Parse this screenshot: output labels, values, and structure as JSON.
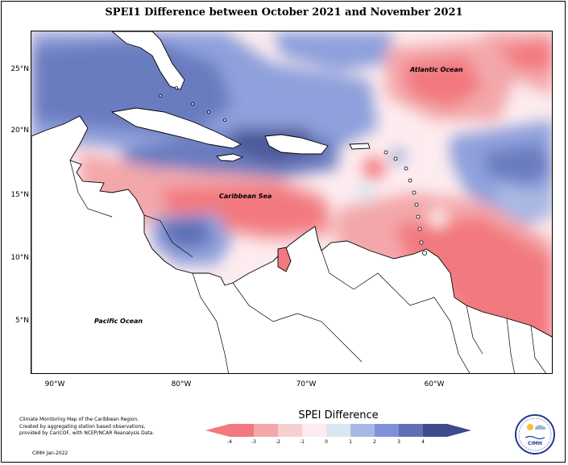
{
  "title": "SPEI1 Difference between October 2021 and November 2021",
  "map": {
    "lat_labels": [
      "25°N",
      "20°N",
      "15°N",
      "10°N",
      "5°N"
    ],
    "lon_labels": [
      "90°W",
      "80°W",
      "70°W",
      "60°W"
    ],
    "place_labels": {
      "atlantic": "Atlantic Ocean",
      "caribbean": "Caribbean Sea",
      "pacific": "Pacific Ocean"
    },
    "extent": {
      "lon_min": -92,
      "lon_max": -51,
      "lat_min": 1.5,
      "lat_max": 28
    }
  },
  "legend": {
    "title": "SPEI Difference",
    "ticks": [
      "-4",
      "-3",
      "-2",
      "-1",
      "0",
      "1",
      "2",
      "3",
      "4"
    ],
    "colors": [
      "#f2797f",
      "#f3a7aa",
      "#f6cfd1",
      "#fdecef",
      "#d8e8ee",
      "#aab9e3",
      "#7f92d9",
      "#5f6fb5",
      "#3e4a8c"
    ]
  },
  "footnote": {
    "lines": [
      "Climate Monitoring Map of the Caribbean Region.",
      "Created by aggregating station based observations,",
      "provided by CariCOF, with NCEP/NCAR Reanalysis Data."
    ],
    "credit": "CIMH Jan-2022"
  },
  "logo": {
    "text": "CIMH"
  }
}
